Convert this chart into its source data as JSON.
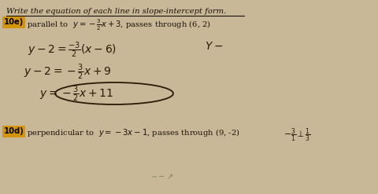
{
  "background_color": "#c8b898",
  "title": "Write the equation of each line in slope-intercept form.",
  "problem_10e_label": "10e)",
  "problem_10e_text": "parallel to  $y=-\\frac{3}{2}x+3$, passes through (6, 2)",
  "problem_10d_label": "10d)",
  "problem_10d_text": "perpendicular to  $y=-3x-1$, passes through (9, -2)",
  "label_10e_color": "#d4950a",
  "label_10d_color": "#d4950a",
  "text_color": "#1a1208",
  "handwrite_color": "#2a1a05",
  "title_underline": true,
  "figsize": [
    4.8,
    2.47
  ],
  "dpi": 100
}
